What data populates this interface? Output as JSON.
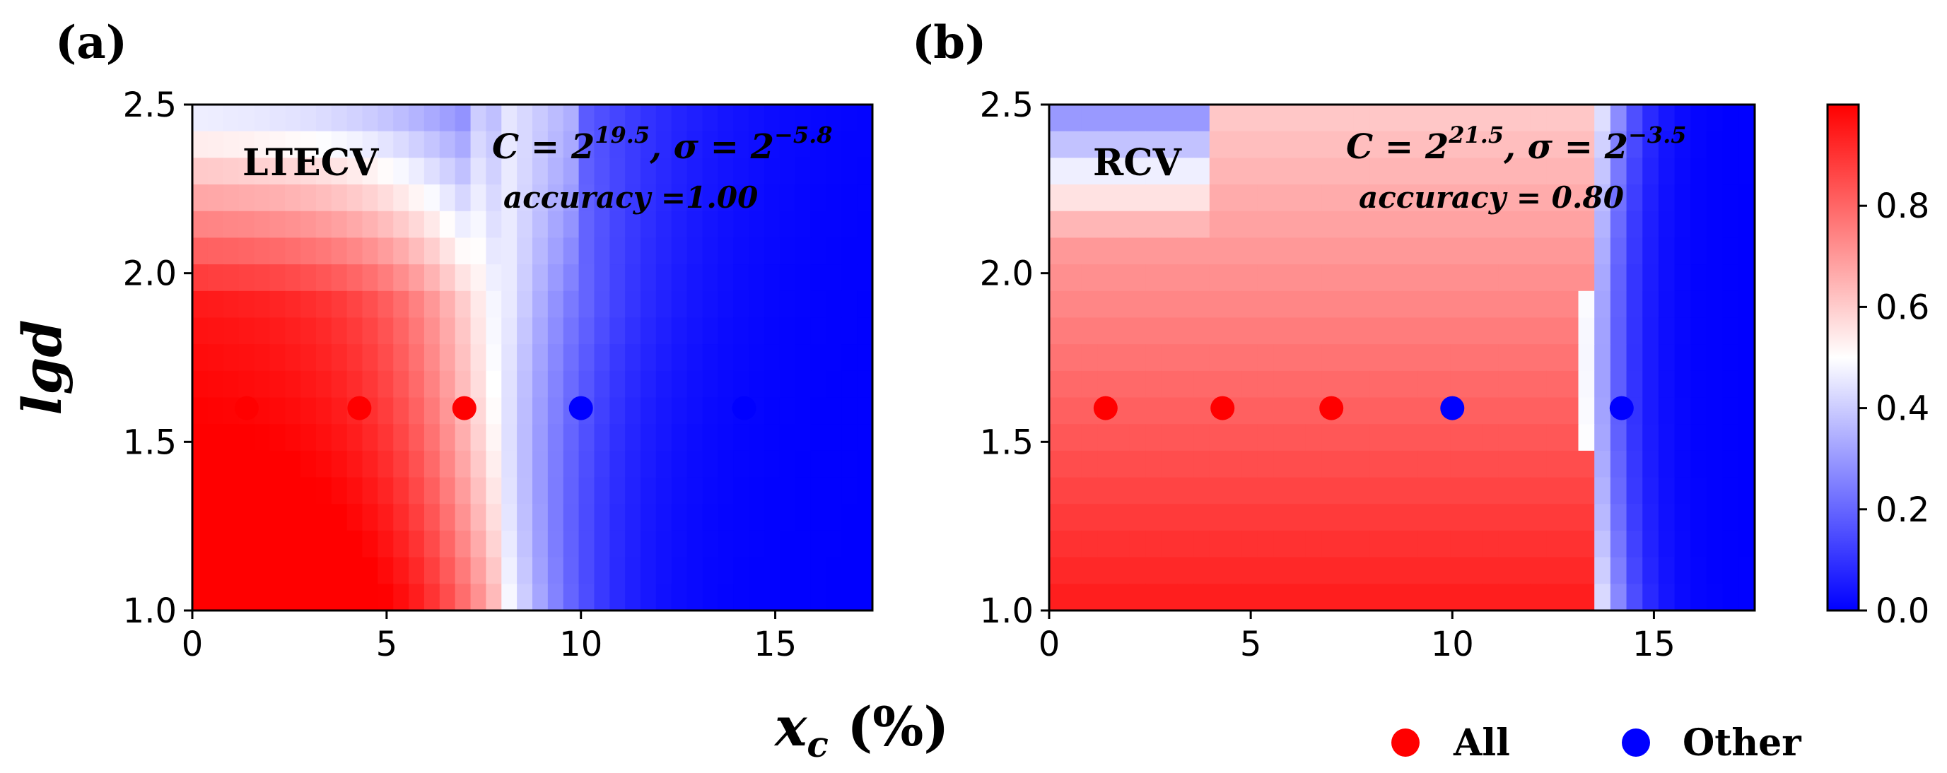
{
  "chart_data": [
    {
      "type": "heatmap",
      "panel_label": "(a)",
      "tag": "LTECV",
      "param_C": "C = 2",
      "param_C_exp": "19.5",
      "param_sep": ", σ = 2",
      "param_sigma_exp": "−5.8",
      "accuracy_label": "accuracy =1.00",
      "xlabel": "x_c (%)",
      "ylabel": "lgd",
      "xlim": [
        0,
        17.5
      ],
      "ylim": [
        1.0,
        2.5
      ],
      "xticks": [
        0,
        5,
        10,
        15
      ],
      "yticks": [
        1.0,
        1.5,
        2.0,
        2.5
      ],
      "xtick_labels": [
        "0",
        "5",
        "10",
        "15"
      ],
      "ytick_labels": [
        "1.0",
        "1.5",
        "2.0",
        "2.5"
      ],
      "boundary_x": 7.8,
      "points": [
        {
          "x": 1.4,
          "y": 1.6,
          "class": "All"
        },
        {
          "x": 4.3,
          "y": 1.6,
          "class": "All"
        },
        {
          "x": 7.0,
          "y": 1.6,
          "class": "All"
        },
        {
          "x": 10.0,
          "y": 1.6,
          "class": "Other"
        },
        {
          "x": 14.2,
          "y": 1.6,
          "class": "Other"
        }
      ]
    },
    {
      "type": "heatmap",
      "panel_label": "(b)",
      "tag": "RCV",
      "param_C": "C = 2",
      "param_C_exp": "21.5",
      "param_sep": ", σ = 2",
      "param_sigma_exp": "−3.5",
      "accuracy_label": "accuracy = 0.80",
      "xlabel": "x_c (%)",
      "ylabel": "lgd",
      "xlim": [
        0,
        17.5
      ],
      "ylim": [
        1.0,
        2.5
      ],
      "xticks": [
        0,
        5,
        10,
        15
      ],
      "yticks": [
        1.0,
        1.5,
        2.0,
        2.5
      ],
      "xtick_labels": [
        "0",
        "5",
        "10",
        "15"
      ],
      "ytick_labels": [
        "1.0",
        "1.5",
        "2.0",
        "2.5"
      ],
      "boundary_x": 13.3,
      "points": [
        {
          "x": 1.4,
          "y": 1.6,
          "class": "All"
        },
        {
          "x": 4.3,
          "y": 1.6,
          "class": "All"
        },
        {
          "x": 7.0,
          "y": 1.6,
          "class": "All"
        },
        {
          "x": 10.0,
          "y": 1.6,
          "class": "Other"
        },
        {
          "x": 14.2,
          "y": 1.6,
          "class": "Other"
        }
      ]
    }
  ],
  "colorbar": {
    "range": [
      0.0,
      1.0
    ],
    "ticks": [
      0.0,
      0.2,
      0.4,
      0.6,
      0.8
    ],
    "tick_labels": [
      "0.0",
      "0.2",
      "0.4",
      "0.6",
      "0.8"
    ],
    "colormap": "bwr"
  },
  "axis_titles": {
    "x_main": "x",
    "x_sub": "c",
    "x_unit": " (%)",
    "y": "lgd"
  },
  "legend": [
    {
      "label": "All",
      "color": "#ff0000"
    },
    {
      "label": "Other",
      "color": "#0000ff"
    }
  ],
  "colors": {
    "all": "#ff0000",
    "other": "#0000ff",
    "high": "#ff0000",
    "mid": "#ffffff",
    "low": "#0000ff"
  }
}
